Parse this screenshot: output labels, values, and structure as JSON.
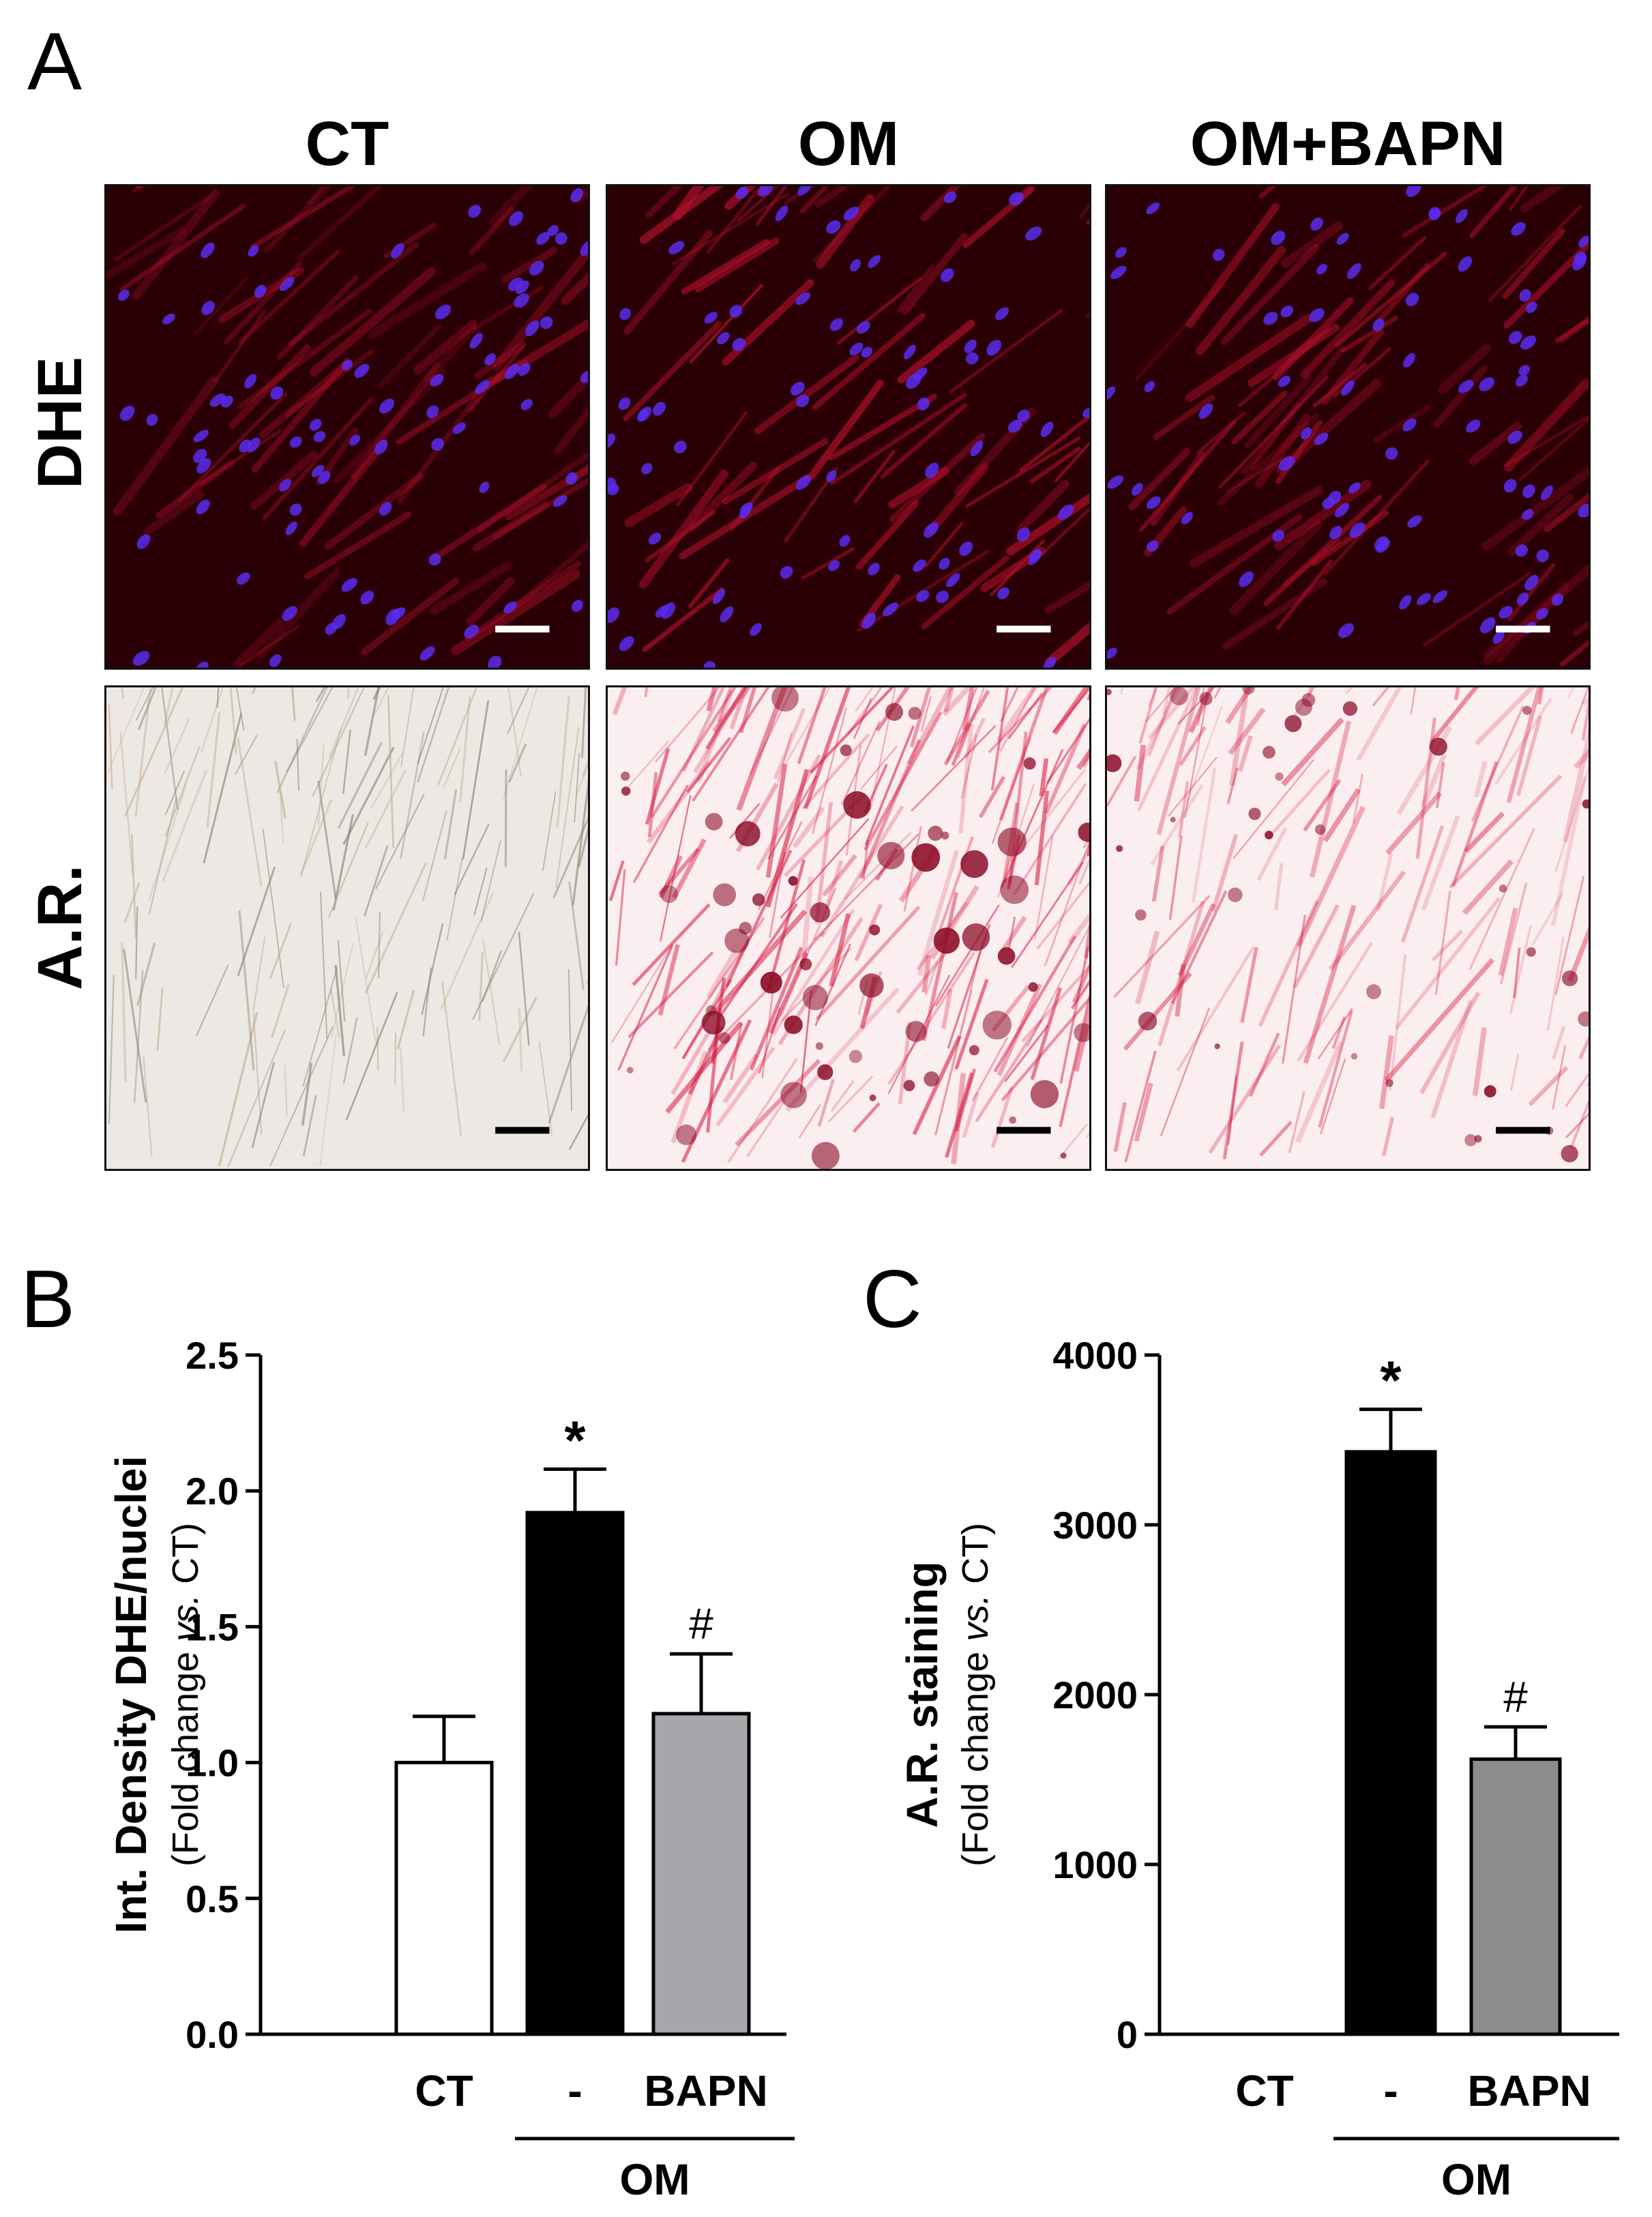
{
  "panel_labels": {
    "a": "A",
    "b": "B",
    "c": "C"
  },
  "panel_a": {
    "columns": [
      "CT",
      "OM",
      "OM+BAPN"
    ],
    "rows": [
      "DHE",
      "A.R."
    ],
    "colors": {
      "dhe_background": "#2a0006",
      "dhe_cytoplasm": "#b0102a",
      "dhe_nuclei": "#5a2cf0",
      "ar_ct_background": "#ece8e4",
      "ar_stain": "#d6183f",
      "ar_nodule": "#8a0a25",
      "scale_white": "#ffffff",
      "scale_black": "#000000"
    }
  },
  "chart_data": [
    {
      "type": "bar",
      "panel": "B",
      "ylabel": "Int. Density DHE/nuclei",
      "ylabel_sub_pre": "(Fold change ",
      "ylabel_sub_italic": "vs.",
      "ylabel_sub_post": " CT)",
      "ylim": [
        0,
        2.5
      ],
      "yticks": [
        "0.0",
        "0.5",
        "1.0",
        "1.5",
        "2.0",
        "2.5"
      ],
      "categories": [
        "CT",
        "-",
        "BAPN"
      ],
      "group_label": "OM",
      "values": [
        1.0,
        1.92,
        1.18
      ],
      "errors": [
        0.17,
        0.16,
        0.22
      ],
      "annotations": [
        "",
        "*",
        "#"
      ],
      "colors": [
        "#ffffff",
        "#000000",
        "#a7a7ab"
      ]
    },
    {
      "type": "bar",
      "panel": "C",
      "ylabel": "A.R. staining",
      "ylabel_sub_pre": "(Fold change ",
      "ylabel_sub_italic": "vs.",
      "ylabel_sub_post": " CT)",
      "ylim": [
        0,
        4000
      ],
      "yticks": [
        "0",
        "1000",
        "2000",
        "3000",
        "4000"
      ],
      "categories": [
        "CT",
        "-",
        "BAPN"
      ],
      "group_label": "OM",
      "values": [
        0,
        3430,
        1620
      ],
      "errors": [
        0,
        250,
        190
      ],
      "annotations": [
        "",
        "*",
        "#"
      ],
      "colors": [
        "#ffffff",
        "#000000",
        "#8c8c8c"
      ]
    }
  ]
}
